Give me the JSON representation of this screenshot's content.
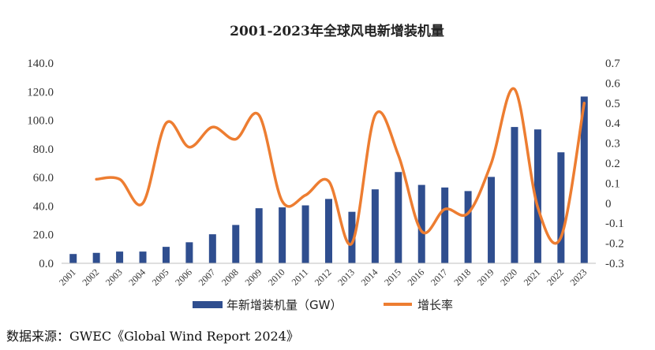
{
  "chart_data": {
    "type": "bar",
    "title": "2001-2023年全球风电新增装机量",
    "categories": [
      "2001",
      "2002",
      "2003",
      "2004",
      "2005",
      "2006",
      "2007",
      "2008",
      "2009",
      "2010",
      "2011",
      "2012",
      "2013",
      "2014",
      "2015",
      "2016",
      "2017",
      "2018",
      "2019",
      "2020",
      "2021",
      "2022",
      "2023"
    ],
    "series": [
      {
        "name": "年新增装机量（GW）",
        "type": "bar",
        "axis": "left",
        "color": "#2F4E8F",
        "values": [
          6.5,
          7.3,
          8.2,
          8.2,
          11.5,
          14.7,
          20.3,
          26.8,
          38.5,
          39.1,
          40.5,
          45.0,
          36.0,
          51.7,
          63.8,
          54.8,
          53.0,
          50.5,
          60.4,
          95.3,
          93.6,
          77.6,
          116.6
        ]
      },
      {
        "name": "增长率",
        "type": "line",
        "axis": "right",
        "color": "#ED7D31",
        "values": [
          null,
          0.12,
          0.12,
          0.0,
          0.4,
          0.28,
          0.38,
          0.32,
          0.44,
          0.01,
          0.04,
          0.11,
          -0.2,
          0.44,
          0.24,
          -0.14,
          -0.03,
          -0.05,
          0.2,
          0.57,
          -0.02,
          -0.17,
          0.5
        ]
      }
    ],
    "y_left": {
      "min": 0,
      "max": 140,
      "ticks": [
        "0.0",
        "20.0",
        "40.0",
        "60.0",
        "80.0",
        "100.0",
        "120.0",
        "140.0"
      ]
    },
    "y_right": {
      "min": -0.3,
      "max": 0.7,
      "ticks": [
        "-0.3",
        "-0.2",
        "-0.1",
        "0",
        "0.1",
        "0.2",
        "0.3",
        "0.4",
        "0.5",
        "0.6",
        "0.7"
      ]
    },
    "grid": false,
    "legend_position": "bottom"
  },
  "source": "数据来源：GWEC《Global Wind Report 2024》"
}
